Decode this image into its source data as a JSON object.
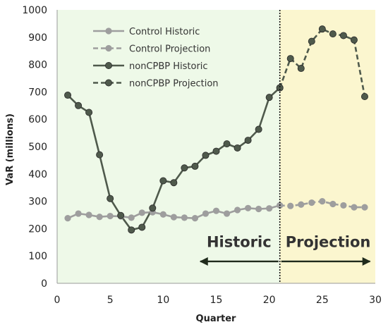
{
  "chart_data": {
    "type": "line",
    "xlabel": "Quarter",
    "ylabel": "VaR (millions)",
    "xlim": [
      0,
      30
    ],
    "ylim": [
      0,
      1000
    ],
    "x_ticks": [
      0,
      5,
      10,
      15,
      20,
      25,
      30
    ],
    "y_ticks": [
      0,
      100,
      200,
      300,
      400,
      500,
      600,
      700,
      800,
      900,
      1000
    ],
    "grid": false,
    "legend_position": "top-left",
    "regions": [
      {
        "label": "Historic",
        "x_start": 0,
        "x_end": 21,
        "color": "#eef9e8"
      },
      {
        "label": "Projection",
        "x_start": 21,
        "x_end": 30,
        "color": "#fbf6cf"
      }
    ],
    "divider_x": 21,
    "arrows": [
      {
        "label": "Historic",
        "from_x": 21,
        "to_x": 13.5,
        "y": 80
      },
      {
        "label": "Projection",
        "from_x": 21,
        "to_x": 29.5,
        "y": 80
      }
    ],
    "series": [
      {
        "name": "Control Historic",
        "style": "solid",
        "color": "#9e9e9e",
        "points": [
          [
            1,
            238
          ],
          [
            2,
            255
          ],
          [
            3,
            250
          ],
          [
            4,
            243
          ],
          [
            5,
            246
          ],
          [
            6,
            245
          ],
          [
            7,
            240
          ],
          [
            8,
            258
          ],
          [
            9,
            260
          ],
          [
            10,
            252
          ],
          [
            11,
            242
          ],
          [
            12,
            240
          ],
          [
            13,
            238
          ],
          [
            14,
            255
          ],
          [
            15,
            265
          ],
          [
            16,
            255
          ],
          [
            17,
            268
          ],
          [
            18,
            275
          ],
          [
            19,
            272
          ],
          [
            20,
            274
          ],
          [
            21,
            285
          ]
        ]
      },
      {
        "name": "Control Projection",
        "style": "dashed",
        "color": "#9e9e9e",
        "points": [
          [
            21,
            285
          ],
          [
            22,
            283
          ],
          [
            23,
            288
          ],
          [
            24,
            295
          ],
          [
            25,
            300
          ],
          [
            26,
            290
          ],
          [
            27,
            285
          ],
          [
            28,
            278
          ],
          [
            29,
            278
          ]
        ]
      },
      {
        "name": "nonCPBP Historic",
        "style": "solid",
        "color": "#4f5a4c",
        "points": [
          [
            1,
            688
          ],
          [
            2,
            650
          ],
          [
            3,
            625
          ],
          [
            4,
            470
          ],
          [
            5,
            310
          ],
          [
            6,
            248
          ],
          [
            7,
            195
          ],
          [
            8,
            205
          ],
          [
            9,
            275
          ],
          [
            10,
            375
          ],
          [
            11,
            368
          ],
          [
            12,
            422
          ],
          [
            13,
            428
          ],
          [
            14,
            468
          ],
          [
            15,
            483
          ],
          [
            16,
            510
          ],
          [
            17,
            495
          ],
          [
            18,
            523
          ],
          [
            19,
            563
          ],
          [
            20,
            680
          ],
          [
            21,
            715
          ]
        ]
      },
      {
        "name": "nonCPBP Projection",
        "style": "dashed",
        "color": "#4f5a4c",
        "points": [
          [
            21,
            715
          ],
          [
            22,
            822
          ],
          [
            23,
            786
          ],
          [
            24,
            885
          ],
          [
            25,
            930
          ],
          [
            26,
            912
          ],
          [
            27,
            906
          ],
          [
            28,
            890
          ],
          [
            29,
            683
          ]
        ]
      }
    ]
  }
}
